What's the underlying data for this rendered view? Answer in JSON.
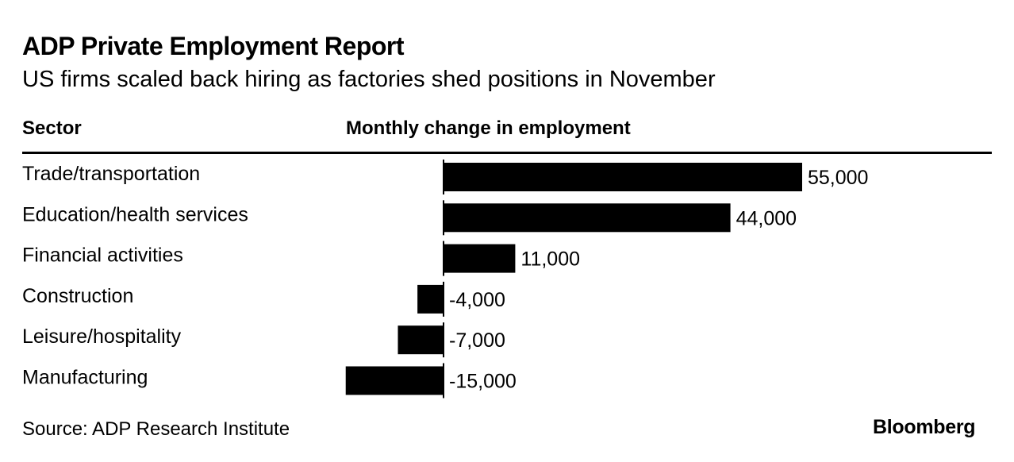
{
  "chart_data": {
    "type": "bar",
    "orientation": "horizontal",
    "title": "ADP Private Employment Report",
    "subtitle": "US firms scaled back hiring as factories shed positions in November",
    "column_headers": {
      "category": "Sector",
      "value": "Monthly change in employment"
    },
    "categories": [
      "Trade/transportation",
      "Education/health services",
      "Financial activities",
      "Construction",
      "Leisure/hospitality",
      "Manufacturing"
    ],
    "values": [
      55000,
      44000,
      11000,
      -4000,
      -7000,
      -15000
    ],
    "value_labels": [
      "55,000",
      "44,000",
      "11,000",
      "-4,000",
      "-7,000",
      "-15,000"
    ],
    "xlim": [
      -15000,
      55000
    ],
    "bar_color": "#000000",
    "grid": false,
    "source": "Source: ADP Research Institute",
    "brand": "Bloomberg"
  }
}
